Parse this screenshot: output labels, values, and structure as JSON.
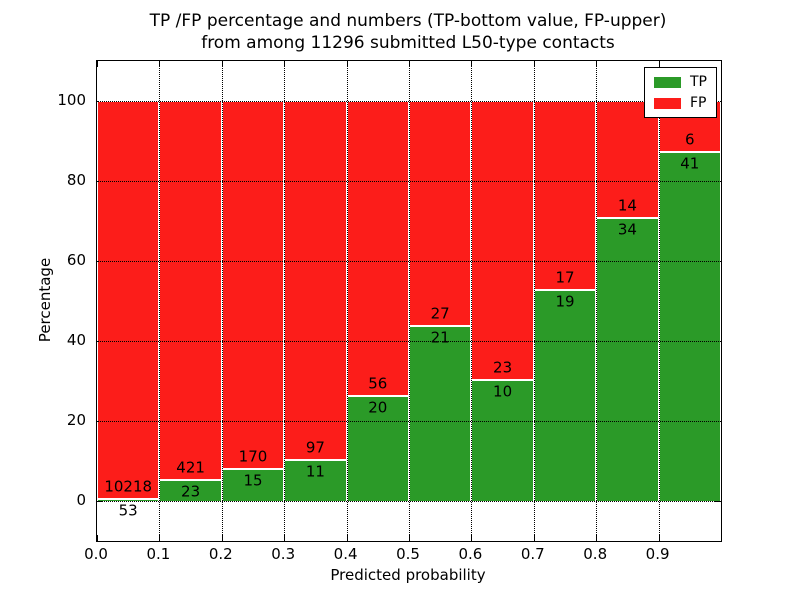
{
  "chart_data": {
    "type": "bar",
    "stacked": true,
    "title_line1": "TP /FP percentage and numbers (TP-bottom value, FP-upper)",
    "title_line2": "from among 11296 submitted L50-type contacts",
    "total_contacts": 11296,
    "xlabel": "Predicted probability",
    "ylabel": "Percentage",
    "xlim": [
      0.0,
      1.0
    ],
    "ylim": [
      -10,
      110
    ],
    "grid": "dotted",
    "legend_position": "upper right",
    "bin_edges": [
      0.0,
      0.1,
      0.2,
      0.3,
      0.4,
      0.5,
      0.6,
      0.7,
      0.8,
      0.9,
      1.0
    ],
    "categories": [
      "0.0-0.1",
      "0.1-0.2",
      "0.2-0.3",
      "0.3-0.4",
      "0.4-0.5",
      "0.5-0.6",
      "0.6-0.7",
      "0.7-0.8",
      "0.8-0.9",
      "0.9-1.0"
    ],
    "series": [
      {
        "name": "TP",
        "color": "#2B9A28",
        "counts": [
          53,
          23,
          15,
          11,
          20,
          21,
          10,
          19,
          34,
          41
        ]
      },
      {
        "name": "FP",
        "color": "#FC1D1A",
        "counts": [
          10218,
          421,
          170,
          97,
          56,
          27,
          23,
          17,
          14,
          6
        ]
      }
    ],
    "tp_percentages": [
      0.52,
      5.18,
      8.11,
      10.19,
      26.32,
      43.75,
      30.3,
      52.78,
      70.83,
      87.23
    ],
    "bar_edge_color": "#ffffff",
    "x_ticks": [
      {
        "v": 0.0,
        "label": "0.0"
      },
      {
        "v": 0.1,
        "label": "0.1"
      },
      {
        "v": 0.2,
        "label": "0.2"
      },
      {
        "v": 0.3,
        "label": "0.3"
      },
      {
        "v": 0.4,
        "label": "0.4"
      },
      {
        "v": 0.5,
        "label": "0.5"
      },
      {
        "v": 0.6,
        "label": "0.6"
      },
      {
        "v": 0.7,
        "label": "0.7"
      },
      {
        "v": 0.8,
        "label": "0.8"
      },
      {
        "v": 0.9,
        "label": "0.9"
      }
    ],
    "y_ticks": [
      {
        "v": 0,
        "label": "0"
      },
      {
        "v": 20,
        "label": "20"
      },
      {
        "v": 40,
        "label": "40"
      },
      {
        "v": 60,
        "label": "60"
      },
      {
        "v": 80,
        "label": "80"
      },
      {
        "v": 100,
        "label": "100"
      }
    ],
    "legend": {
      "entries": [
        {
          "label": "TP",
          "color": "#2B9A28"
        },
        {
          "label": "FP",
          "color": "#FC1D1A"
        }
      ]
    }
  }
}
